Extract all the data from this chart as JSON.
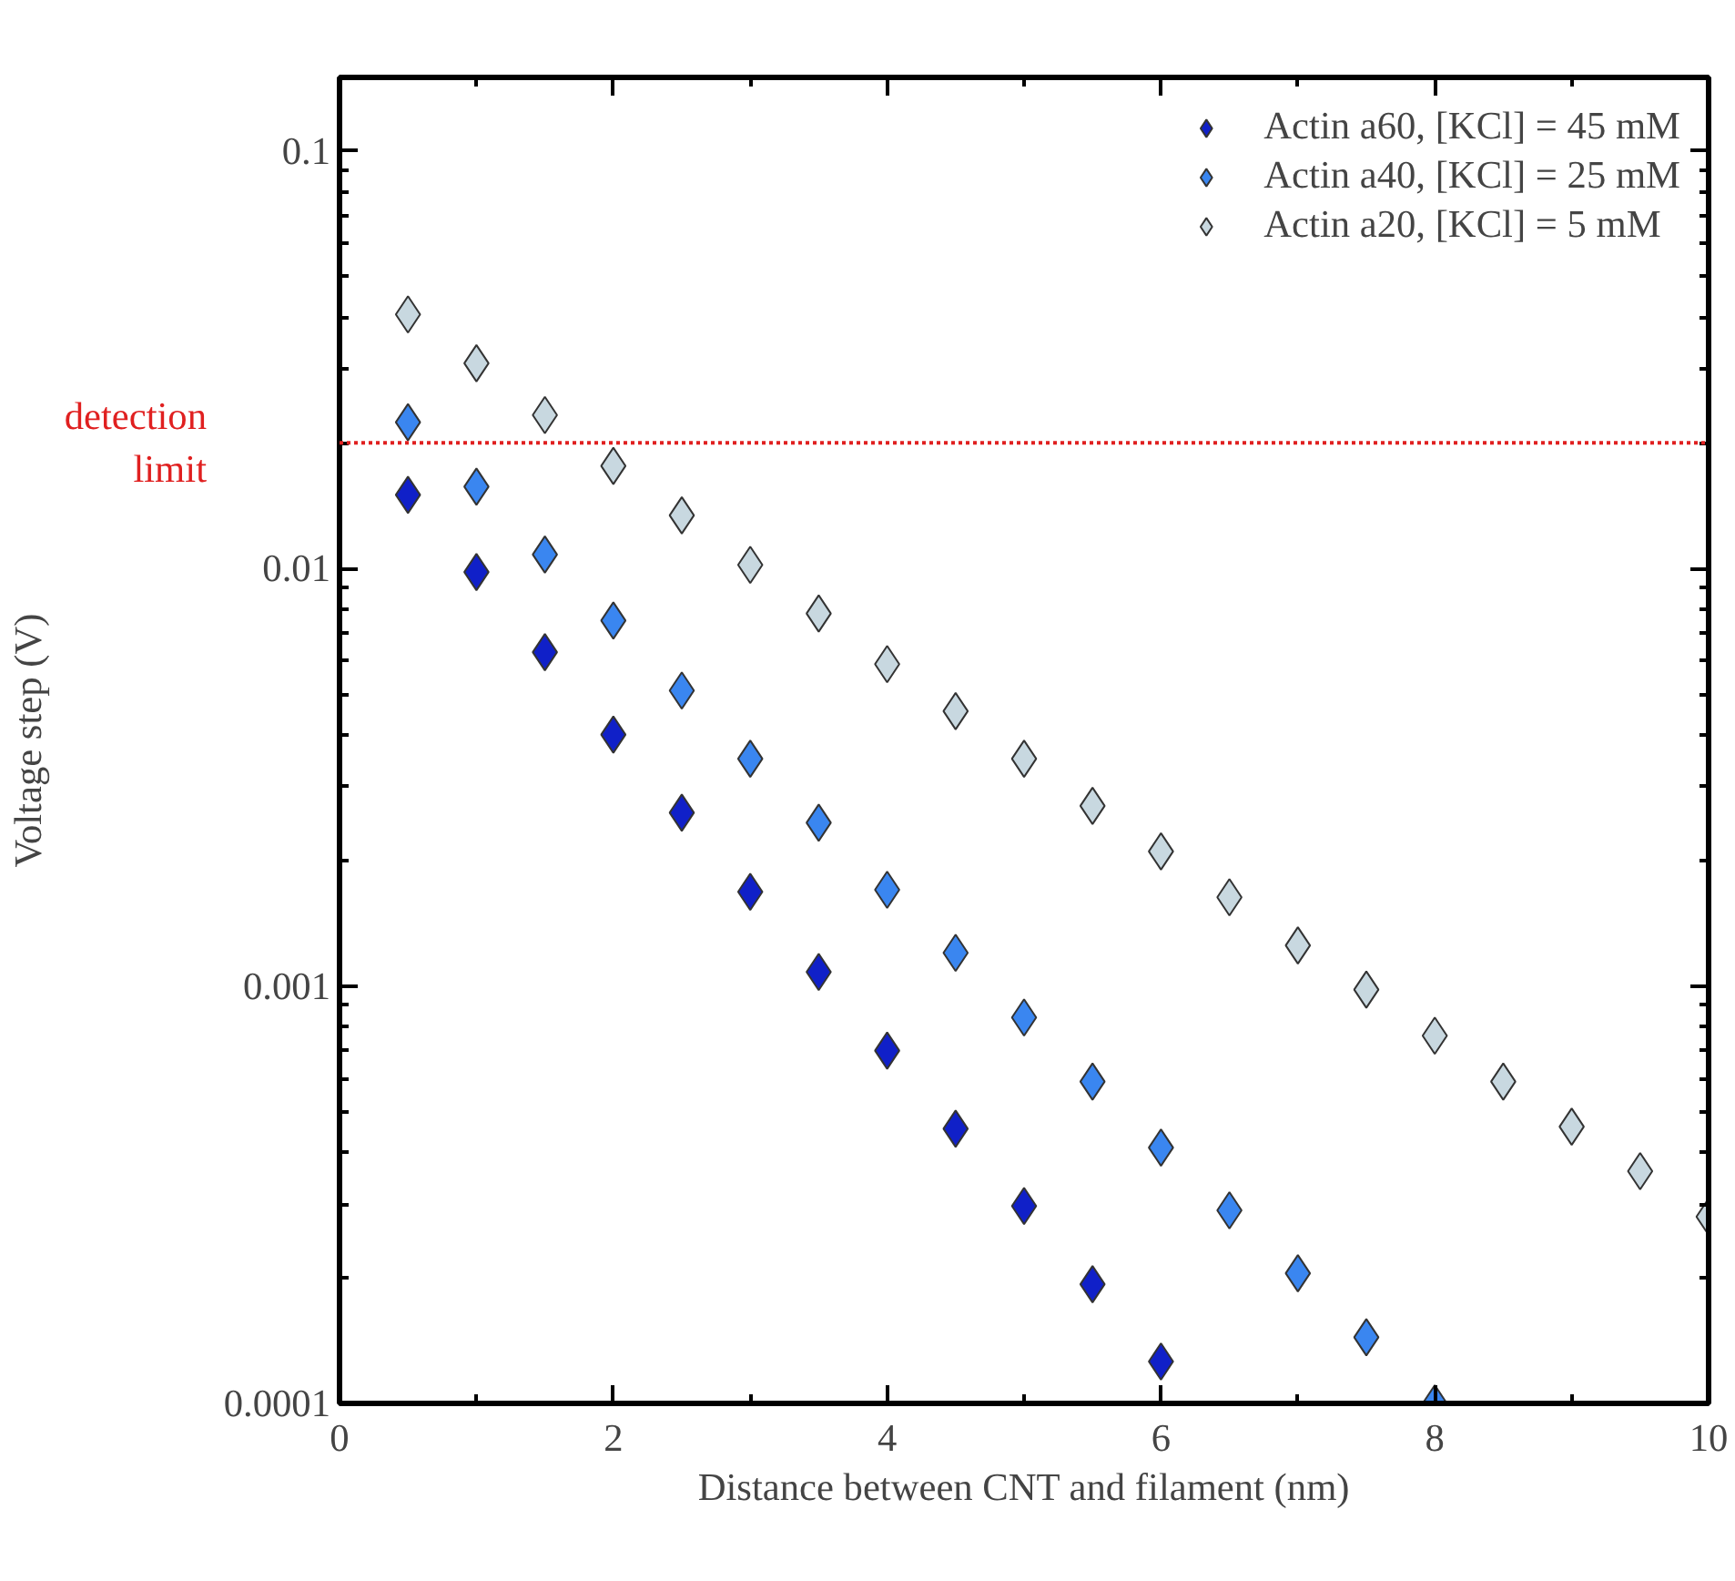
{
  "chart_data": {
    "type": "scatter",
    "xlabel": "Distance between CNT and filament (nm)",
    "ylabel": "Voltage step (V)",
    "log": "y",
    "grid": false,
    "legend": "top right",
    "marker": "diamond",
    "xlim": [
      0,
      10
    ],
    "xticks": [
      0,
      2,
      4,
      6,
      8,
      10
    ],
    "ylim": [
      0.0001,
      0.15
    ],
    "yticks": [
      0.0001,
      0.001,
      0.01,
      0.1
    ],
    "ref_lines": [
      {
        "axis": "y",
        "value": 0.02,
        "label": "detection limit",
        "color": "#e02020",
        "line_style": "dotted"
      }
    ],
    "series": [
      {
        "name": "Actin a60, [KCl] = 45 mM",
        "color": "#1020c8",
        "x": [
          0.5,
          1,
          1.5,
          2,
          2.5,
          3,
          3.5,
          4,
          4.5,
          5,
          5.5,
          6
        ],
        "values": [
          0.015,
          0.0098,
          0.0063,
          0.004,
          0.0026,
          0.00168,
          0.00108,
          0.0007,
          0.000455,
          0.000297,
          0.000193,
          0.000126
        ]
      },
      {
        "name": "Actin a40, [KCl] = 25 mM",
        "color": "#3a86f0",
        "x": [
          0.5,
          1,
          1.5,
          2,
          2.5,
          3,
          3.5,
          4,
          4.5,
          5,
          5.5,
          6,
          6.5,
          7,
          7.5,
          8
        ],
        "values": [
          0.0224,
          0.0157,
          0.0108,
          0.0075,
          0.0051,
          0.0035,
          0.00246,
          0.0017,
          0.0012,
          0.00084,
          0.00059,
          0.00041,
          0.00029,
          0.000205,
          0.000144,
          0.0001
        ]
      },
      {
        "name": "Actin a20, [KCl] = 5 mM",
        "color": "#c8d8e0",
        "x": [
          0.5,
          1,
          1.5,
          2,
          2.5,
          3,
          3.5,
          4,
          4.5,
          5,
          5.5,
          6,
          6.5,
          7,
          7.5,
          8,
          8.5,
          9,
          9.5,
          10
        ],
        "values": [
          0.0406,
          0.031,
          0.0233,
          0.0176,
          0.0134,
          0.0102,
          0.0078,
          0.0059,
          0.00455,
          0.0035,
          0.0027,
          0.0021,
          0.00163,
          0.00125,
          0.00098,
          0.00076,
          0.00059,
          0.00046,
          0.00036,
          0.00028
        ]
      }
    ]
  }
}
